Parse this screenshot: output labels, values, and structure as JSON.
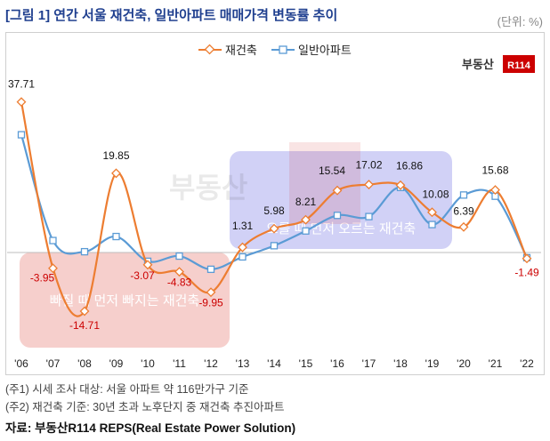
{
  "header": {
    "title": "[그림 1] 연간 서울 재건축, 일반아파트 매매가격 변동률 추이",
    "unit": "(단위: %)"
  },
  "logo": {
    "text": "부동산",
    "badge": "R114"
  },
  "annotations": {
    "fall_box": "빠질 때 먼저 빠지는 재건축",
    "rise_box": "오를 때 먼저 오르는 재건축"
  },
  "notes": [
    "(주1) 시세 조사 대상: 서울 아파트 약 116만가구 기준",
    "(주2) 재건축 기준: 30년 초과 노후단지 중 재건축 추진아파트"
  ],
  "source": "자료: 부동산R114 REPS(Real Estate Power Solution)",
  "colors": {
    "rebuild": "#ed7d31",
    "apartment": "#5b9bd5",
    "title": "#1f3f8f",
    "negative_label": "#cc0000",
    "fall_box": "#f4c7c3",
    "rise_box": "#c9c9f5"
  },
  "chart_data": {
    "type": "line",
    "categories": [
      "'06",
      "'07",
      "'08",
      "'09",
      "'10",
      "'11",
      "'12",
      "'13",
      "'14",
      "'15",
      "'16",
      "'17",
      "'18",
      "'19",
      "'20",
      "'21",
      "'22"
    ],
    "series": [
      {
        "name": "재건축",
        "values": [
          37.71,
          -3.95,
          -14.71,
          19.85,
          -3.07,
          -4.83,
          -9.95,
          1.31,
          5.98,
          8.21,
          15.54,
          17.02,
          16.86,
          10.08,
          6.39,
          15.68,
          -1.49
        ],
        "labels": [
          "37.71",
          "-3.95",
          "-14.71",
          "19.85",
          "-3.07",
          "-4.83",
          "-9.95",
          "1.31",
          "5.98",
          "8.21",
          "15.54",
          "17.02",
          "16.86",
          "10.08",
          "6.39",
          "15.68",
          "-1.49"
        ]
      },
      {
        "name": "일반아파트",
        "values": [
          29.5,
          3.0,
          0.2,
          4.0,
          -2.2,
          -0.9,
          -4.2,
          -1.1,
          1.7,
          5.4,
          9.3,
          9.0,
          16.3,
          7.0,
          14.4,
          14.1,
          -1.3
        ]
      }
    ],
    "ylim": [
      -20,
      42
    ],
    "legend": "top-center",
    "grid": false
  }
}
